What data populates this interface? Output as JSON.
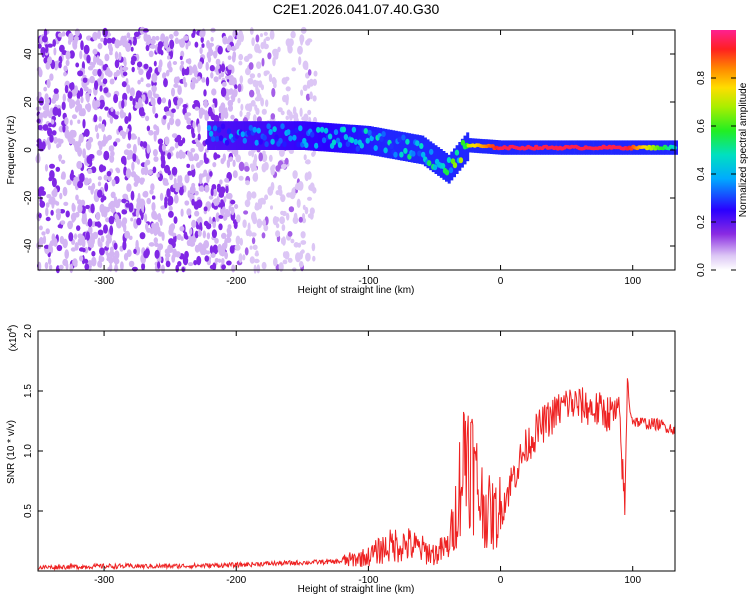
{
  "title": "C2E1.2026.041.07.40.G30",
  "colors": {
    "frame": "#000000",
    "snr_line": "#ee2222",
    "background": "#ffffff"
  },
  "chart_data": [
    {
      "type": "heatmap",
      "name": "spectrogram",
      "xlabel": "Height of straight line (km)",
      "ylabel": "Frequency (Hz)",
      "xlim": [
        -350,
        132
      ],
      "ylim": [
        -50,
        50
      ],
      "x_ticks": [
        -300,
        -200,
        -100,
        0,
        100
      ],
      "y_ticks": [
        -40,
        -20,
        0,
        20,
        40
      ],
      "colorbar": {
        "label": "Normalized spectral amplitude",
        "range": [
          0,
          1
        ],
        "ticks": [
          0.0,
          0.2,
          0.4,
          0.6,
          0.8
        ]
      },
      "features": [
        {
          "name": "noise_band_dense",
          "x_range": [
            -350,
            -200
          ],
          "freq_range": [
            -50,
            50
          ],
          "amplitude": 0.1
        },
        {
          "name": "noise_band_sparse",
          "x_range": [
            -200,
            -140
          ],
          "freq_range": [
            -50,
            50
          ],
          "amplitude": 0.05
        },
        {
          "name": "signal_track",
          "x": [
            -222,
            -150,
            -100,
            -60,
            -40,
            -25,
            0,
            50,
            95,
            132
          ],
          "freq": [
            6,
            6,
            4,
            0,
            -8,
            2,
            1,
            1,
            1,
            1
          ],
          "amplitude": [
            0.35,
            0.4,
            0.45,
            0.5,
            0.55,
            0.7,
            0.95,
            0.95,
            0.95,
            0.45
          ]
        }
      ]
    },
    {
      "type": "line",
      "name": "snr",
      "xlabel": "Height of straight line (km)",
      "ylabel": "SNR (10 * v/v)",
      "y_multiplier": "(x10",
      "y_exponent": "4",
      "y_multiplier_close": ")",
      "xlim": [
        -350,
        132
      ],
      "ylim": [
        0,
        2.0
      ],
      "x_ticks": [
        -300,
        -200,
        -100,
        0,
        100
      ],
      "y_ticks": [
        0.5,
        1.0,
        1.5,
        2.0
      ],
      "y_tick_labels": [
        "0.5",
        "1.0",
        "1.5",
        "2.0"
      ],
      "series": [
        {
          "name": "SNR",
          "x": [
            -350,
            -300,
            -250,
            -200,
            -180,
            -150,
            -120,
            -100,
            -90,
            -80,
            -70,
            -60,
            -50,
            -40,
            -35,
            -30,
            -25,
            -20,
            -15,
            -10,
            -5,
            0,
            10,
            20,
            30,
            40,
            50,
            60,
            70,
            80,
            90,
            94,
            96,
            98,
            100,
            110,
            120,
            132
          ],
          "y": [
            0.03,
            0.04,
            0.04,
            0.05,
            0.06,
            0.07,
            0.08,
            0.12,
            0.18,
            0.22,
            0.22,
            0.18,
            0.14,
            0.2,
            0.4,
            0.8,
            1.1,
            0.8,
            0.6,
            0.5,
            0.45,
            0.5,
            0.8,
            1.05,
            1.2,
            1.3,
            1.4,
            1.38,
            1.35,
            1.32,
            1.3,
            0.5,
            1.6,
            1.35,
            1.25,
            1.23,
            1.22,
            1.18
          ]
        }
      ]
    }
  ]
}
